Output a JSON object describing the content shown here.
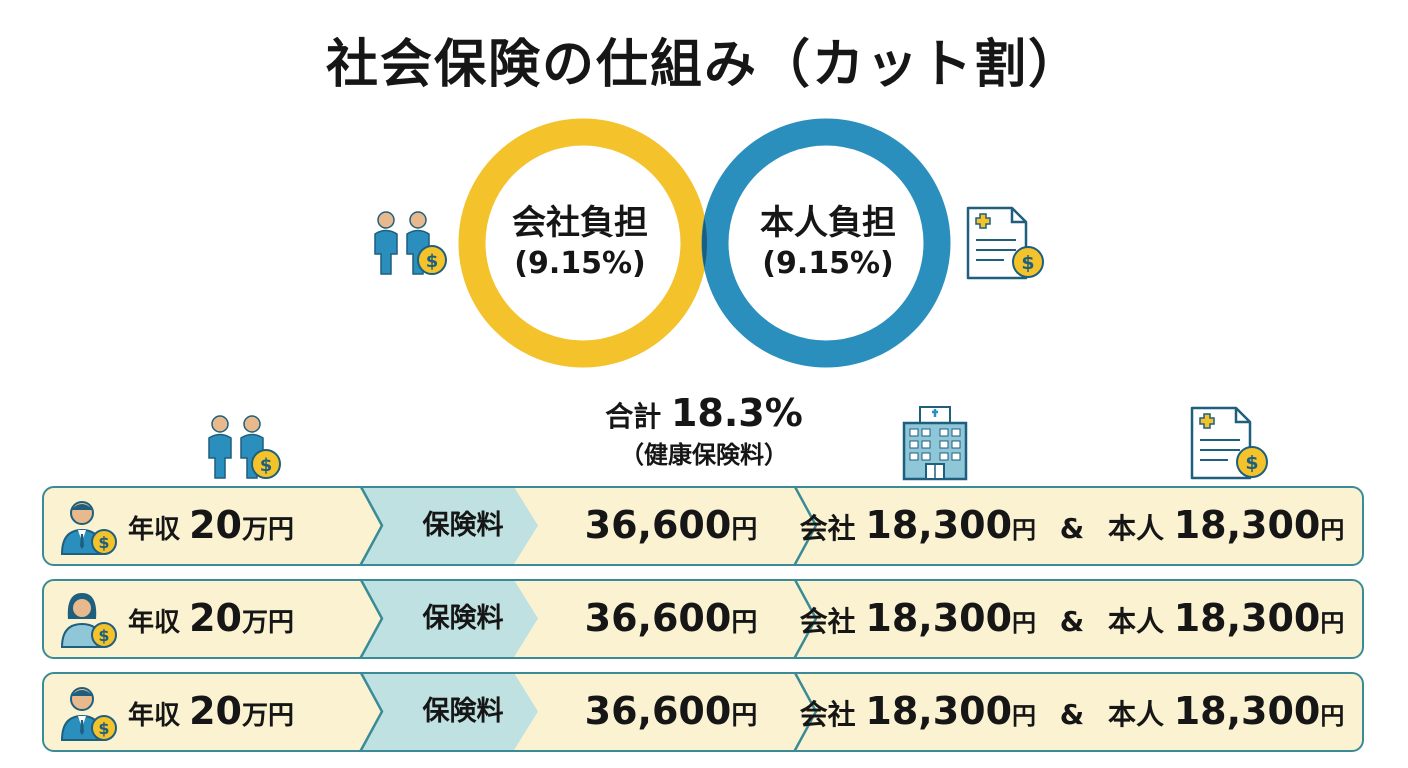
{
  "title": "社会保険の仕組み（カット割）",
  "venn": {
    "left": {
      "name": "会社負担",
      "percent": "(9.15%)",
      "color": "#f4c22b"
    },
    "right": {
      "name": "本人負担",
      "percent": "(9.15%)",
      "color": "#2a8fbd"
    },
    "overlap_color": "#1b5e80",
    "total_label": "合計",
    "total_value": "18.3%",
    "total_note": "（健康保険料）"
  },
  "icons": [
    "people-money-icon",
    "document-money-icon",
    "hospital-icon"
  ],
  "rows": [
    {
      "icon": "businessman-money-icon",
      "salary_label": "年収",
      "salary_value": "20",
      "salary_unit": "万円",
      "insurance_label": "保険料",
      "amount": "36,600",
      "amount_unit": "円",
      "company_label": "会社",
      "company_amount": "18,300",
      "company_unit": "円",
      "amp": "&",
      "person_label": "本人",
      "person_amount": "18,300",
      "person_unit": "円"
    },
    {
      "icon": "woman-money-icon",
      "salary_label": "年収",
      "salary_value": "20",
      "salary_unit": "万円",
      "insurance_label": "保険料",
      "amount": "36,600",
      "amount_unit": "円",
      "company_label": "会社",
      "company_amount": "18,300",
      "company_unit": "円",
      "amp": "&",
      "person_label": "本人",
      "person_amount": "18,300",
      "person_unit": "円"
    },
    {
      "icon": "businessman-money-icon",
      "salary_label": "年収",
      "salary_value": "20",
      "salary_unit": "万円",
      "insurance_label": "保険料",
      "amount": "36,600",
      "amount_unit": "円",
      "company_label": "会社",
      "company_amount": "18,300",
      "company_unit": "円",
      "amp": "&",
      "person_label": "本人",
      "person_amount": "18,300",
      "person_unit": "円"
    }
  ]
}
